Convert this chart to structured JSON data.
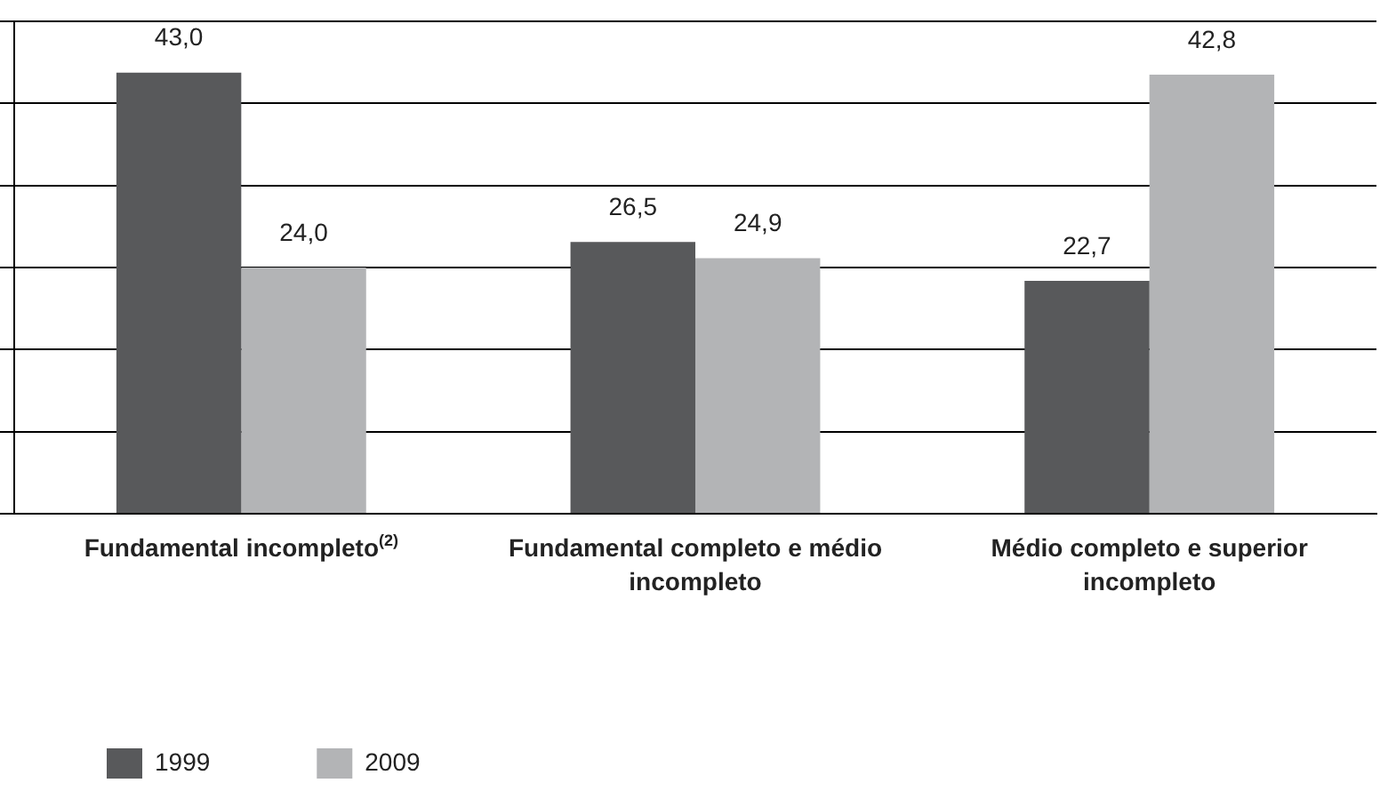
{
  "chart_data": {
    "type": "bar",
    "categories": [
      "Fundamental incompleto$^{(2)}$",
      "Fundamental completo e médio incompleto",
      "Médio completo e superior incompleto"
    ],
    "series": [
      {
        "name": "1999",
        "color": "#58595b",
        "values": [
          43.0,
          26.5,
          22.7
        ],
        "value_labels": [
          "43,0",
          "26,5",
          "22,7"
        ]
      },
      {
        "name": "2009",
        "color": "#b3b4b6",
        "values": [
          24.0,
          24.9,
          42.8
        ],
        "value_labels": [
          "24,0",
          "24,9",
          "42,8"
        ]
      }
    ],
    "ylim": [
      0,
      48
    ],
    "yticks": [
      {
        "value": 0,
        "label": null
      },
      {
        "value": 8,
        "label": null
      },
      {
        "value": 16,
        "label": null
      },
      {
        "value": 24,
        "label": null
      },
      {
        "value": 32,
        "label": null
      },
      {
        "value": 40,
        "label": null
      },
      {
        "value": 48,
        "label": null
      }
    ],
    "grid": "y",
    "tick_labels": "x",
    "legend": "bottom left"
  }
}
